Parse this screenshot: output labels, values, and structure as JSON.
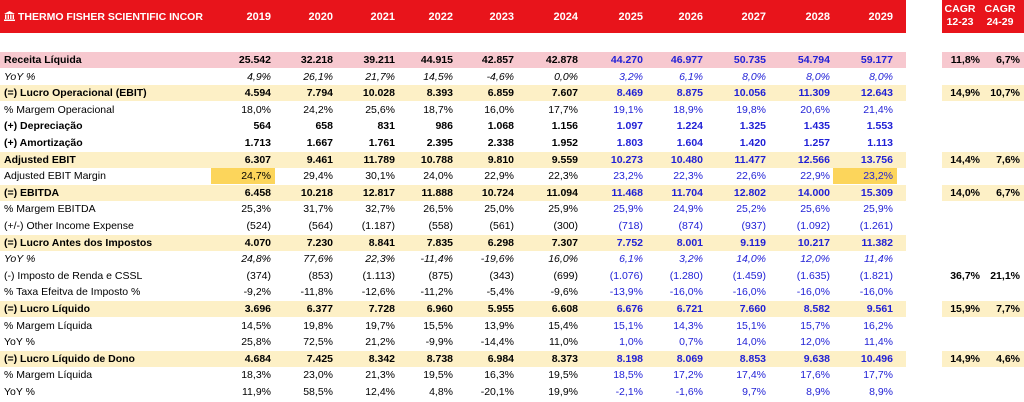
{
  "header": {
    "title": "THERMO FISHER SCIENTIFIC INCOR",
    "years": [
      "2019",
      "2020",
      "2021",
      "2022",
      "2023",
      "2024",
      "2025",
      "2026",
      "2027",
      "2028",
      "2029"
    ],
    "cagr_labels": [
      {
        "line1": "CAGR",
        "line2": "12-23"
      },
      {
        "line1": "CAGR",
        "line2": "24-29"
      }
    ]
  },
  "rows": [
    {
      "label": "Receita Líquida",
      "style": "pink",
      "bold": true,
      "italic": false,
      "values": [
        "25.542",
        "32.218",
        "39.211",
        "44.915",
        "42.857",
        "42.878",
        "44.270",
        "46.977",
        "50.735",
        "54.794",
        "59.177"
      ],
      "cagr": [
        "11,8%",
        "6,7%"
      ],
      "highlight": []
    },
    {
      "label": "YoY %",
      "style": "",
      "bold": false,
      "italic": true,
      "values": [
        "4,9%",
        "26,1%",
        "21,7%",
        "14,5%",
        "-4,6%",
        "0,0%",
        "3,2%",
        "6,1%",
        "8,0%",
        "8,0%",
        "8,0%"
      ],
      "cagr": [],
      "highlight": []
    },
    {
      "label": "(=) Lucro Operacional (EBIT)",
      "style": "yellow",
      "bold": true,
      "italic": false,
      "values": [
        "4.594",
        "7.794",
        "10.028",
        "8.393",
        "6.859",
        "7.607",
        "8.469",
        "8.875",
        "10.056",
        "11.309",
        "12.643"
      ],
      "cagr": [
        "14,9%",
        "10,7%"
      ],
      "highlight": []
    },
    {
      "label": "% Margem Operacional",
      "style": "",
      "bold": false,
      "italic": false,
      "values": [
        "18,0%",
        "24,2%",
        "25,6%",
        "18,7%",
        "16,0%",
        "17,7%",
        "19,1%",
        "18,9%",
        "19,8%",
        "20,6%",
        "21,4%"
      ],
      "cagr": [],
      "highlight": []
    },
    {
      "label": "(+) Depreciação",
      "style": "",
      "bold": true,
      "italic": false,
      "values": [
        "564",
        "658",
        "831",
        "986",
        "1.068",
        "1.156",
        "1.097",
        "1.224",
        "1.325",
        "1.435",
        "1.553"
      ],
      "cagr": [],
      "highlight": []
    },
    {
      "label": "(+)  Amortização",
      "style": "",
      "bold": true,
      "italic": false,
      "values": [
        "1.713",
        "1.667",
        "1.761",
        "2.395",
        "2.338",
        "1.952",
        "1.803",
        "1.604",
        "1.420",
        "1.257",
        "1.113"
      ],
      "cagr": [],
      "highlight": []
    },
    {
      "label": "Adjusted EBIT",
      "style": "yellow",
      "bold": true,
      "italic": false,
      "values": [
        "6.307",
        "9.461",
        "11.789",
        "10.788",
        "9.810",
        "9.559",
        "10.273",
        "10.480",
        "11.477",
        "12.566",
        "13.756"
      ],
      "cagr": [
        "14,4%",
        "7,6%"
      ],
      "highlight": []
    },
    {
      "label": "Adjusted EBIT Margin",
      "style": "",
      "bold": false,
      "italic": false,
      "values": [
        "24,7%",
        "29,4%",
        "30,1%",
        "24,0%",
        "22,9%",
        "22,3%",
        "23,2%",
        "22,3%",
        "22,6%",
        "22,9%",
        "23,2%"
      ],
      "cagr": [],
      "highlight": [
        0,
        10
      ]
    },
    {
      "label": "(=) EBITDA",
      "style": "yellow",
      "bold": true,
      "italic": false,
      "values": [
        "6.458",
        "10.218",
        "12.817",
        "11.888",
        "10.724",
        "11.094",
        "11.468",
        "11.704",
        "12.802",
        "14.000",
        "15.309"
      ],
      "cagr": [
        "14,0%",
        "6,7%"
      ],
      "highlight": []
    },
    {
      "label": "% Margem EBITDA",
      "style": "",
      "bold": false,
      "italic": false,
      "values": [
        "25,3%",
        "31,7%",
        "32,7%",
        "26,5%",
        "25,0%",
        "25,9%",
        "25,9%",
        "24,9%",
        "25,2%",
        "25,6%",
        "25,9%"
      ],
      "cagr": [],
      "highlight": []
    },
    {
      "label": "(+/-) Other Income Expense",
      "style": "",
      "bold": false,
      "italic": false,
      "values": [
        "(524)",
        "(564)",
        "(1.187)",
        "(558)",
        "(561)",
        "(300)",
        "(718)",
        "(874)",
        "(937)",
        "(1.092)",
        "(1.261)"
      ],
      "cagr": [],
      "highlight": []
    },
    {
      "label": "(=) Lucro Antes dos Impostos",
      "style": "yellow",
      "bold": true,
      "italic": false,
      "values": [
        "4.070",
        "7.230",
        "8.841",
        "7.835",
        "6.298",
        "7.307",
        "7.752",
        "8.001",
        "9.119",
        "10.217",
        "11.382"
      ],
      "cagr": [],
      "highlight": []
    },
    {
      "label": "YoY %",
      "style": "",
      "bold": false,
      "italic": true,
      "values": [
        "24,8%",
        "77,6%",
        "22,3%",
        "-11,4%",
        "-19,6%",
        "16,0%",
        "6,1%",
        "3,2%",
        "14,0%",
        "12,0%",
        "11,4%"
      ],
      "cagr": [],
      "highlight": []
    },
    {
      "label": "(-) Imposto de Renda e CSSL",
      "style": "",
      "bold": false,
      "italic": false,
      "values": [
        "(374)",
        "(853)",
        "(1.113)",
        "(875)",
        "(343)",
        "(699)",
        "(1.076)",
        "(1.280)",
        "(1.459)",
        "(1.635)",
        "(1.821)"
      ],
      "cagr": [
        "36,7%",
        "21,1%"
      ],
      "highlight": []
    },
    {
      "label": "% Taxa Efeitva de Imposto %",
      "style": "",
      "bold": false,
      "italic": false,
      "values": [
        "-9,2%",
        "-11,8%",
        "-12,6%",
        "-11,2%",
        "-5,4%",
        "-9,6%",
        "-13,9%",
        "-16,0%",
        "-16,0%",
        "-16,0%",
        "-16,0%"
      ],
      "cagr": [],
      "highlight": []
    },
    {
      "label": "(=) Lucro Líquido",
      "style": "yellow",
      "bold": true,
      "italic": false,
      "values": [
        "3.696",
        "6.377",
        "7.728",
        "6.960",
        "5.955",
        "6.608",
        "6.676",
        "6.721",
        "7.660",
        "8.582",
        "9.561"
      ],
      "cagr": [
        "15,9%",
        "7,7%"
      ],
      "highlight": []
    },
    {
      "label": "% Margem Líquida",
      "style": "",
      "bold": false,
      "italic": false,
      "values": [
        "14,5%",
        "19,8%",
        "19,7%",
        "15,5%",
        "13,9%",
        "15,4%",
        "15,1%",
        "14,3%",
        "15,1%",
        "15,7%",
        "16,2%"
      ],
      "cagr": [],
      "highlight": []
    },
    {
      "label": "YoY %",
      "style": "",
      "bold": false,
      "italic": false,
      "values": [
        "25,8%",
        "72,5%",
        "21,2%",
        "-9,9%",
        "-14,4%",
        "11,0%",
        "1,0%",
        "0,7%",
        "14,0%",
        "12,0%",
        "11,4%"
      ],
      "cagr": [],
      "highlight": []
    },
    {
      "label": "(=) Lucro Líquido de Dono",
      "style": "yellow",
      "bold": true,
      "italic": false,
      "values": [
        "4.684",
        "7.425",
        "8.342",
        "8.738",
        "6.984",
        "8.373",
        "8.198",
        "8.069",
        "8.853",
        "9.638",
        "10.496"
      ],
      "cagr": [
        "14,9%",
        "4,6%"
      ],
      "highlight": []
    },
    {
      "label": "% Margem Líquida",
      "style": "",
      "bold": false,
      "italic": false,
      "values": [
        "18,3%",
        "23,0%",
        "21,3%",
        "19,5%",
        "16,3%",
        "19,5%",
        "18,5%",
        "17,2%",
        "17,4%",
        "17,6%",
        "17,7%"
      ],
      "cagr": [],
      "highlight": []
    },
    {
      "label": "YoY %",
      "style": "",
      "bold": false,
      "italic": false,
      "values": [
        "11,9%",
        "58,5%",
        "12,4%",
        "4,8%",
        "-20,1%",
        "19,9%",
        "-2,1%",
        "-1,6%",
        "9,7%",
        "8,9%",
        "8,9%"
      ],
      "cagr": [],
      "highlight": []
    }
  ],
  "colors": {
    "header": "#e8141b",
    "pink": "#f7c8cf",
    "yellow": "#fdf0c6",
    "highlight": "#fcd55b",
    "projection_text": "#1f1fd6"
  },
  "projection_start_index": 6
}
